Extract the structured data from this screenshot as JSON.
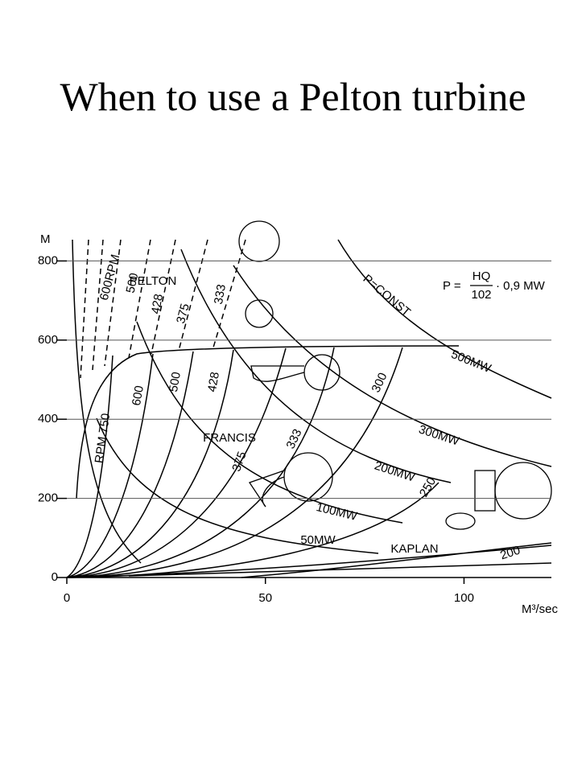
{
  "title": "When to use a Pelton turbine",
  "chart_data": {
    "type": "line",
    "y_label": "M",
    "x_label": "M³/sec",
    "xlim": [
      0,
      122
    ],
    "ylim": [
      0,
      870
    ],
    "xticks": [
      0,
      50,
      100
    ],
    "yticks": [
      0,
      200,
      400,
      600,
      800
    ],
    "grid": true,
    "formula": {
      "lhs": "P =",
      "numerator": "HQ",
      "denominator": "102",
      "rhs": "· 0,9 MW"
    },
    "annotations": [
      "PELTON",
      "FRANCIS",
      "KAPLAN",
      "P=CONST",
      "500MW",
      "300MW",
      "200MW",
      "100MW",
      "50MW",
      "600RPM",
      "500",
      "428",
      "375",
      "333",
      "RPM 750",
      "600",
      "500",
      "428",
      "375",
      "333",
      "300",
      "250",
      "200"
    ]
  }
}
